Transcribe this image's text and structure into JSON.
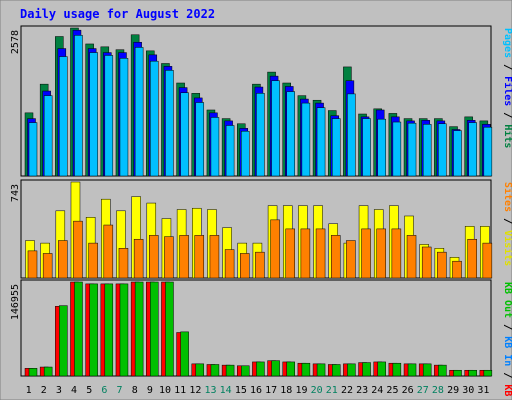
{
  "chart_data": {
    "type": "bar",
    "title": "Daily usage for August 2022",
    "days": [
      "1",
      "2",
      "3",
      "4",
      "5",
      "6",
      "7",
      "8",
      "9",
      "10",
      "11",
      "12",
      "13",
      "14",
      "15",
      "16",
      "17",
      "18",
      "19",
      "20",
      "21",
      "22",
      "23",
      "24",
      "25",
      "26",
      "27",
      "28",
      "29",
      "30",
      "31"
    ],
    "weekend_days": [
      "6",
      "7",
      "13",
      "14",
      "20",
      "21",
      "27",
      "28"
    ],
    "top_panel": {
      "y_tick_label": "2578",
      "ylim": [
        0,
        2578
      ],
      "side_labels": [
        {
          "text": "Hits",
          "color": "#008040"
        },
        {
          "text": " / ",
          "color": "#000000"
        },
        {
          "text": "Files",
          "color": "#0000ff"
        },
        {
          "text": " / ",
          "color": "#000000"
        },
        {
          "text": "Pages",
          "color": "#00c0ff"
        }
      ],
      "series": [
        {
          "name": "Hits",
          "color": "#008040",
          "values": [
            1100,
            1600,
            2430,
            2578,
            2300,
            2250,
            2200,
            2460,
            2180,
            1960,
            1620,
            1440,
            1150,
            1000,
            910,
            1600,
            1810,
            1620,
            1400,
            1320,
            1140,
            1900,
            1080,
            1170,
            1090,
            1000,
            1000,
            1000,
            860,
            1030,
            960
          ]
        },
        {
          "name": "Files",
          "color": "#0000ff",
          "values": [
            1000,
            1480,
            2220,
            2540,
            2220,
            2150,
            2150,
            2330,
            2110,
            1910,
            1540,
            1360,
            1100,
            960,
            830,
            1550,
            1740,
            1560,
            1340,
            1270,
            1050,
            1660,
            1030,
            1150,
            1030,
            960,
            970,
            960,
            810,
            970,
            900
          ]
        },
        {
          "name": "Pages",
          "color": "#00c0ff",
          "values": [
            930,
            1400,
            2080,
            2450,
            2150,
            2100,
            2050,
            2240,
            2000,
            1840,
            1450,
            1280,
            1020,
            880,
            780,
            1440,
            1660,
            1470,
            1270,
            1190,
            1000,
            1430,
            1000,
            990,
            940,
            920,
            900,
            910,
            790,
            930,
            850
          ]
        }
      ]
    },
    "middle_panel": {
      "y_tick_label": "743",
      "ylim": [
        0,
        743
      ],
      "side_labels": [
        {
          "text": "Visits",
          "color": "#e0e000"
        },
        {
          "text": " / ",
          "color": "#000000"
        },
        {
          "text": "Sites",
          "color": "#ff8000"
        }
      ],
      "series": [
        {
          "name": "Visits",
          "color": "#ffff00",
          "values": [
            290,
            270,
            520,
            743,
            470,
            610,
            520,
            630,
            580,
            460,
            530,
            540,
            530,
            390,
            270,
            270,
            560,
            560,
            560,
            560,
            420,
            270,
            560,
            530,
            560,
            480,
            260,
            230,
            160,
            400,
            400
          ]
        },
        {
          "name": "Sites",
          "color": "#ff8000",
          "values": [
            210,
            190,
            290,
            440,
            270,
            410,
            230,
            300,
            330,
            320,
            330,
            330,
            330,
            220,
            190,
            200,
            450,
            380,
            380,
            380,
            330,
            290,
            380,
            380,
            380,
            330,
            240,
            200,
            130,
            300,
            270
          ]
        }
      ]
    },
    "bottom_panel": {
      "y_tick_label": "146955",
      "ylim": [
        0,
        146955
      ],
      "side_labels": [
        {
          "text": "KB F",
          "color": "#ff0000"
        },
        {
          "text": " / ",
          "color": "#000000"
        },
        {
          "text": "KB In",
          "color": "#0080ff"
        },
        {
          "text": " / ",
          "color": "#000000"
        },
        {
          "text": "KB Out",
          "color": "#00c000"
        }
      ],
      "series": [
        {
          "name": "KB F",
          "color": "#ff0000",
          "values": [
            12000,
            14000,
            109000,
            146955,
            144000,
            144000,
            144000,
            146955,
            146955,
            146955,
            68000,
            19000,
            18000,
            17000,
            16000,
            22000,
            24000,
            22000,
            20000,
            19000,
            18000,
            19000,
            21000,
            22000,
            20000,
            19000,
            19000,
            17000,
            9000,
            9000,
            9000
          ]
        },
        {
          "name": "KB Out",
          "color": "#00c000",
          "values": [
            12000,
            14000,
            110000,
            146955,
            144000,
            144000,
            144000,
            146955,
            146955,
            146955,
            69000,
            19000,
            18000,
            17000,
            16000,
            22000,
            24000,
            22000,
            20000,
            19000,
            18000,
            19000,
            21000,
            22000,
            20000,
            19000,
            19000,
            17000,
            9000,
            9000,
            9000
          ]
        }
      ]
    },
    "colors": {
      "background": "#c0c0c0",
      "title": "#0000ff",
      "weekday_label": "#000000",
      "weekend_label": "#00805f"
    }
  }
}
